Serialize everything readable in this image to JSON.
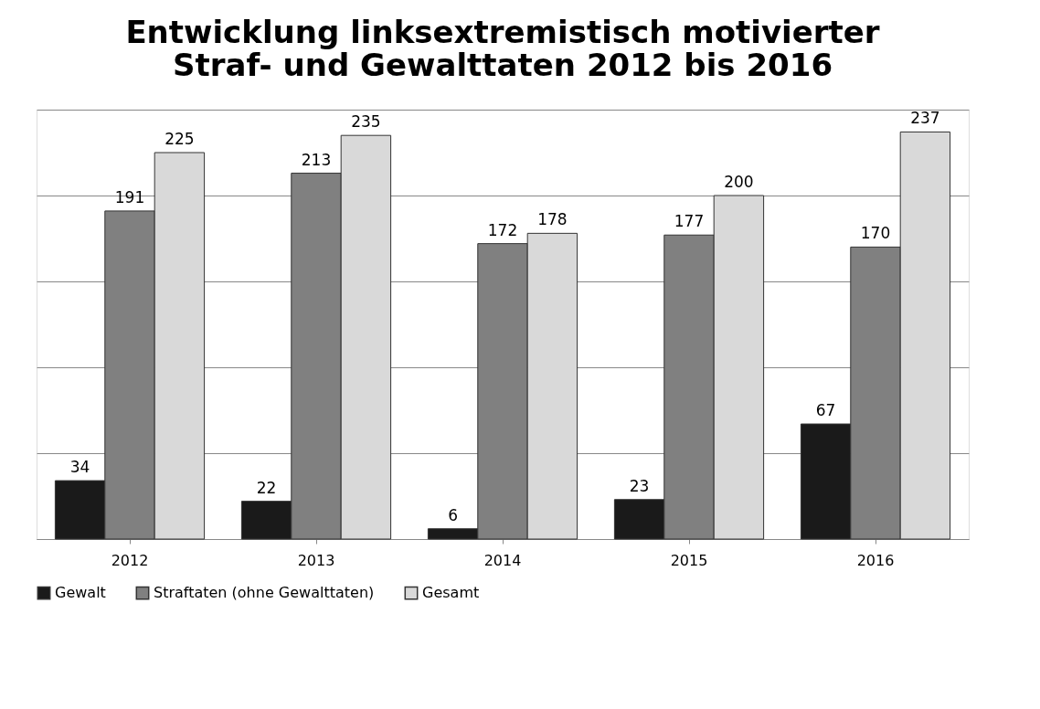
{
  "chart_data": {
    "type": "bar",
    "title": "Entwicklung linksextremistisch motivierter\nStraf- und Gewalttaten 2012 bis 2016",
    "categories": [
      "2012",
      "2013",
      "2014",
      "2015",
      "2016"
    ],
    "series": [
      {
        "name": "Gewalt",
        "color": "#1a1a1a",
        "values": [
          34,
          22,
          6,
          23,
          67
        ]
      },
      {
        "name": "Straftaten (ohne Gewalttaten)",
        "color": "#808080",
        "values": [
          191,
          213,
          172,
          177,
          170
        ]
      },
      {
        "name": "Gesamt",
        "color": "#d9d9d9",
        "values": [
          225,
          235,
          178,
          200,
          237
        ]
      }
    ],
    "ylim": [
      0,
      250
    ],
    "yticks": [
      {
        "value": 0,
        "label": null
      },
      {
        "value": 50,
        "label": null
      },
      {
        "value": 100,
        "label": null
      },
      {
        "value": 150,
        "label": null
      },
      {
        "value": 200,
        "label": null
      },
      {
        "value": 250,
        "label": null
      }
    ],
    "tick_labels": "x",
    "grid": "y",
    "legend": "bottom",
    "data_labels": true
  }
}
